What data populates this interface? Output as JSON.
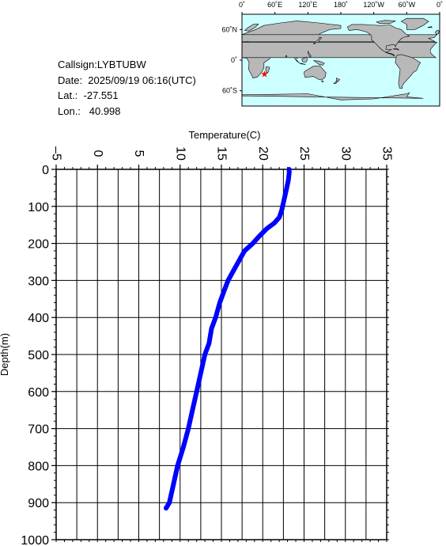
{
  "info": {
    "callsign": "Callsign:LYBTUBW",
    "date": "Date:  2025/09/19 06:16(UTC)",
    "lat": "Lat.:  -27.551",
    "lon": "Lon.:   40.998"
  },
  "map": {
    "lon_labels": [
      "0˚",
      "60˚E",
      "120˚E",
      "180˚",
      "120˚W",
      "60˚W",
      "0˚"
    ],
    "lat_labels": [
      "60˚N",
      "0˚",
      "60˚S"
    ],
    "ocean_color": "#ccffff",
    "land_color": "#b8b8b8",
    "marker": {
      "lat": -27.551,
      "lon": 40.998,
      "color": "#ff0000"
    }
  },
  "chart_data": {
    "type": "line",
    "title": "",
    "xlabel": "Temperature(C)",
    "ylabel": "Depth(m)",
    "xlim": [
      -5,
      35
    ],
    "ylim": [
      1000,
      0
    ],
    "x_ticks": [
      "-5",
      "0",
      "5",
      "10",
      "15",
      "20",
      "25",
      "30",
      "35"
    ],
    "y_ticks": [
      "0",
      "100",
      "200",
      "300",
      "400",
      "500",
      "600",
      "700",
      "800",
      "900",
      "1000"
    ],
    "grid": true,
    "series": [
      {
        "color": "#0000ff",
        "points": [
          [
            23.2,
            0
          ],
          [
            23.2,
            10
          ],
          [
            23.1,
            30
          ],
          [
            22.9,
            50
          ],
          [
            22.7,
            70
          ],
          [
            22.5,
            90
          ],
          [
            22.3,
            110
          ],
          [
            22.0,
            130
          ],
          [
            21.4,
            145
          ],
          [
            20.5,
            160
          ],
          [
            19.6,
            180
          ],
          [
            18.8,
            200
          ],
          [
            17.8,
            220
          ],
          [
            17.3,
            240
          ],
          [
            16.8,
            260
          ],
          [
            16.3,
            280
          ],
          [
            15.8,
            300
          ],
          [
            15.3,
            330
          ],
          [
            14.8,
            360
          ],
          [
            14.3,
            400
          ],
          [
            13.8,
            430
          ],
          [
            13.5,
            470
          ],
          [
            13.0,
            500
          ],
          [
            12.5,
            550
          ],
          [
            12.0,
            600
          ],
          [
            11.5,
            650
          ],
          [
            11.0,
            700
          ],
          [
            10.4,
            750
          ],
          [
            9.7,
            800
          ],
          [
            9.2,
            850
          ],
          [
            8.7,
            900
          ],
          [
            8.3,
            915
          ]
        ]
      }
    ]
  }
}
